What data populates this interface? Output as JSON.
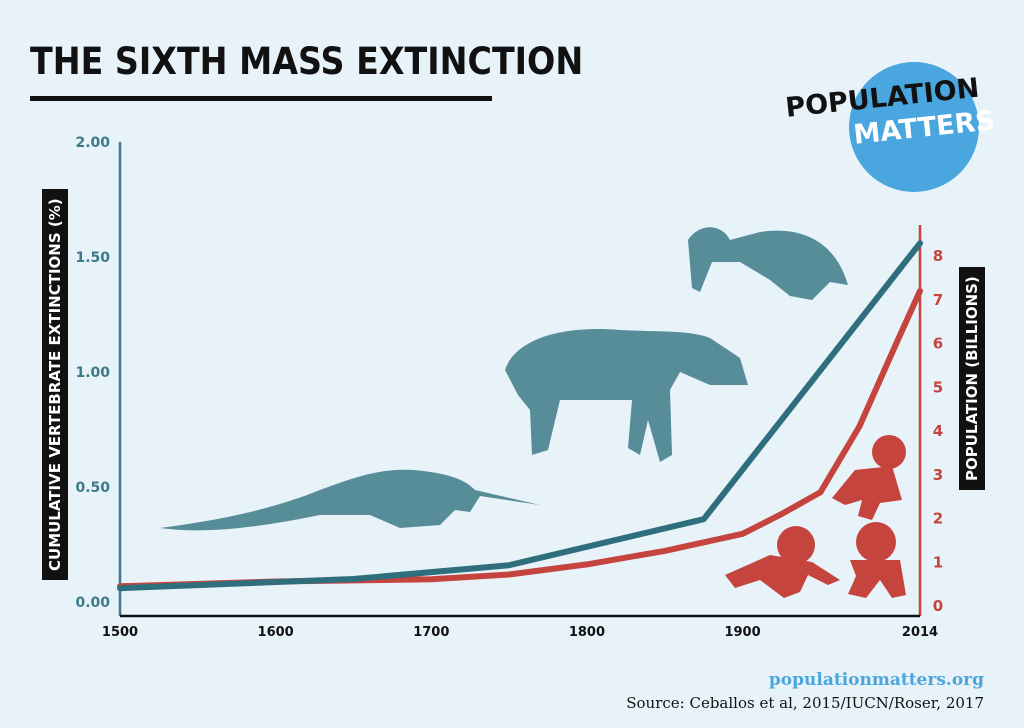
{
  "title": "THE SIXTH MASS EXTINCTION",
  "logo": {
    "line1": "POPULATION",
    "line2": "MATTERS",
    "color": "#4aa6de"
  },
  "footer": {
    "site": "populationmatters.org",
    "source": "Source: Ceballos et al, 2015/IUCN/Roser, 2017"
  },
  "chart_data": {
    "type": "line",
    "x_ticks": [
      "1500",
      "1600",
      "1700",
      "1800",
      "1900",
      "2014"
    ],
    "x_range": [
      1500,
      2014
    ],
    "y_left": {
      "label": "CUMULATIVE VERTEBRATE EXTINCTIONS (%)",
      "ticks": [
        "0.00",
        "0.50",
        "1.00",
        "1.50",
        "2.00"
      ],
      "range": [
        0,
        2
      ]
    },
    "y_right": {
      "label": "POPULATION (BILLIONS)",
      "ticks": [
        "0",
        "1",
        "2",
        "3",
        "4",
        "5",
        "6",
        "7",
        "8"
      ],
      "range": [
        0,
        9
      ]
    },
    "series": [
      {
        "axis": "left",
        "color": "#2f6e7c",
        "points": [
          [
            1500,
            0.06
          ],
          [
            1650,
            0.1
          ],
          [
            1750,
            0.16
          ],
          [
            1875,
            0.36
          ],
          [
            2014,
            1.56
          ]
        ]
      },
      {
        "axis": "right",
        "color": "#c5453e",
        "points": [
          [
            1500,
            0.45
          ],
          [
            1600,
            0.56
          ],
          [
            1700,
            0.61
          ],
          [
            1750,
            0.72
          ],
          [
            1800,
            0.95
          ],
          [
            1850,
            1.26
          ],
          [
            1900,
            1.65
          ],
          [
            1925,
            2.1
          ],
          [
            1950,
            2.6
          ],
          [
            1975,
            4.1
          ],
          [
            2000,
            6.1
          ],
          [
            2014,
            7.2
          ]
        ]
      }
    ],
    "grid": false,
    "legend": "none"
  }
}
